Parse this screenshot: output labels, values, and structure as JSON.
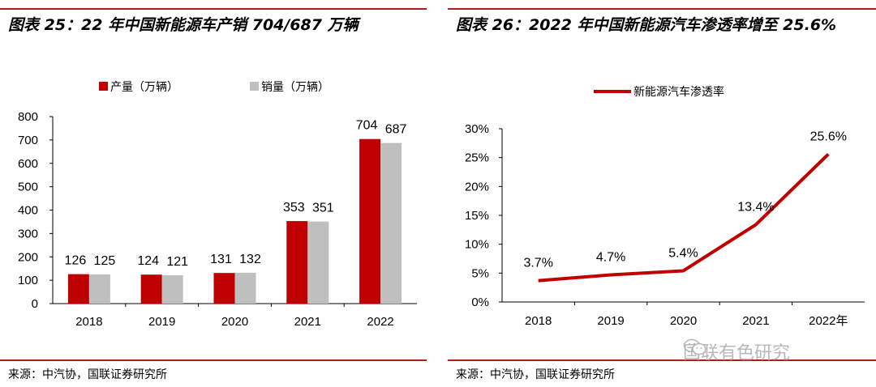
{
  "left": {
    "title": "图表 25：22 年中国新能源车产销 704/687 万辆",
    "source": "来源：中汽协，国联证券研究所",
    "chart_data": {
      "type": "bar",
      "categories": [
        "2018",
        "2019",
        "2020",
        "2021",
        "2022"
      ],
      "series": [
        {
          "name": "产量（万辆）",
          "values": [
            126,
            124,
            131,
            353,
            704
          ],
          "color": "#c00000"
        },
        {
          "name": "销量（万辆）",
          "values": [
            125,
            121,
            132,
            351,
            687
          ],
          "color": "#bfbfbf"
        }
      ],
      "ylim": [
        0,
        800
      ],
      "yticks": [
        "0",
        "100",
        "200",
        "300",
        "400",
        "500",
        "600",
        "700",
        "800"
      ],
      "legend": "top"
    }
  },
  "right": {
    "title": "图表 26：2022 年中国新能源汽车渗透率增至 25.6%",
    "source": "来源：中汽协，国联证券研究所",
    "chart_data": {
      "type": "line",
      "categories": [
        "2018",
        "2019",
        "2020",
        "2021",
        "2022年"
      ],
      "series": [
        {
          "name": "新能源汽车渗透率",
          "values": [
            3.7,
            4.7,
            5.4,
            13.4,
            25.6
          ],
          "labels": [
            "3.7%",
            "4.7%",
            "5.4%",
            "13.4%",
            "25.6%"
          ],
          "color": "#c00000"
        }
      ],
      "ylim": [
        0,
        30
      ],
      "yticks": [
        "0%",
        "5%",
        "10%",
        "15%",
        "20%",
        "25%",
        "30%"
      ],
      "legend": "top"
    }
  },
  "watermark": {
    "text": "国联有色研究",
    "icon": "wechat-icon"
  }
}
